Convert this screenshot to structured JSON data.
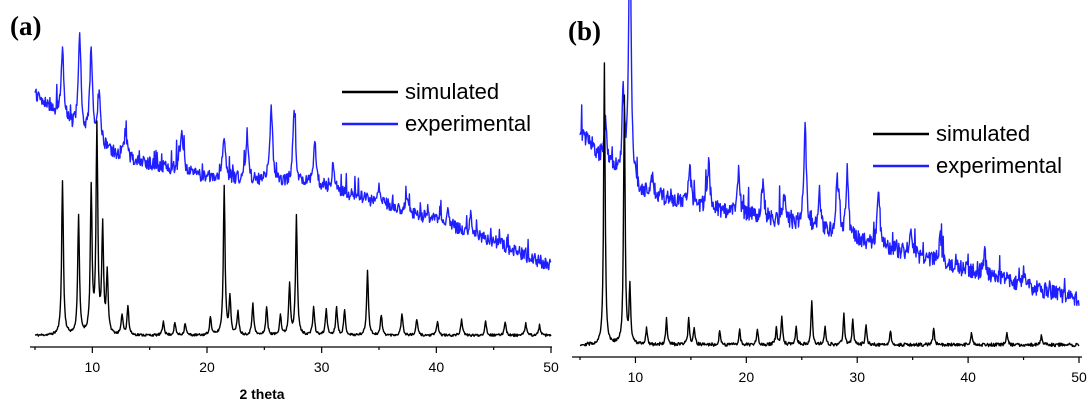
{
  "chart_data": [
    {
      "panel": "(a)",
      "type": "line",
      "xlabel": "2 theta",
      "ylabel": "",
      "xlim": [
        5,
        50
      ],
      "xticks": [
        10,
        20,
        30,
        40,
        50
      ],
      "y_axis_visible": false,
      "grid": false,
      "legend_position": "top-right",
      "series": [
        {
          "name": "simulated",
          "color": "#000000",
          "baseline": 4,
          "peaks": [
            [
              7.4,
              75
            ],
            [
              8.8,
              58
            ],
            [
              9.9,
              70
            ],
            [
              10.4,
              100
            ],
            [
              10.9,
              52
            ],
            [
              11.3,
              30
            ],
            [
              12.6,
              10
            ],
            [
              13.1,
              14
            ],
            [
              16.2,
              7
            ],
            [
              17.2,
              6
            ],
            [
              18.1,
              6
            ],
            [
              20.3,
              9
            ],
            [
              21.5,
              72
            ],
            [
              22.0,
              18
            ],
            [
              22.7,
              12
            ],
            [
              24.0,
              16
            ],
            [
              25.2,
              14
            ],
            [
              26.4,
              10
            ],
            [
              27.2,
              25
            ],
            [
              27.8,
              58
            ],
            [
              29.3,
              14
            ],
            [
              30.4,
              13
            ],
            [
              31.3,
              14
            ],
            [
              32.0,
              12
            ],
            [
              34.0,
              32
            ],
            [
              35.2,
              10
            ],
            [
              37.0,
              11
            ],
            [
              38.3,
              8
            ],
            [
              40.1,
              7
            ],
            [
              42.2,
              8
            ],
            [
              44.3,
              7
            ],
            [
              46.0,
              7
            ],
            [
              47.8,
              6
            ],
            [
              49.0,
              5
            ]
          ]
        },
        {
          "name": "experimental",
          "color": "#1e1eff",
          "background": [
            [
              5,
              82
            ],
            [
              8,
              72
            ],
            [
              12,
              62
            ],
            [
              20,
              55
            ],
            [
              30,
              52
            ],
            [
              40,
              41
            ],
            [
              50,
              26
            ]
          ],
          "peaks": [
            [
              7.4,
              22
            ],
            [
              8.9,
              30
            ],
            [
              9.9,
              28
            ],
            [
              10.6,
              17
            ],
            [
              12.9,
              9
            ],
            [
              17.8,
              14
            ],
            [
              21.5,
              14
            ],
            [
              23.5,
              12
            ],
            [
              25.6,
              25
            ],
            [
              27.6,
              23
            ],
            [
              29.4,
              14
            ],
            [
              31.0,
              8
            ],
            [
              35.0,
              6
            ],
            [
              37.5,
              5
            ],
            [
              41.0,
              4
            ],
            [
              43.0,
              5
            ],
            [
              45.5,
              3
            ]
          ]
        }
      ]
    },
    {
      "panel": "(b)",
      "type": "line",
      "xlabel": "",
      "ylabel": "",
      "xlim": [
        5,
        50
      ],
      "xticks": [
        10,
        20,
        30,
        40,
        50
      ],
      "y_axis_visible": false,
      "grid": false,
      "legend_position": "right",
      "series": [
        {
          "name": "simulated",
          "color": "#000000",
          "baseline": 3,
          "peaks": [
            [
              7.2,
              100
            ],
            [
              9.0,
              88
            ],
            [
              9.5,
              20
            ],
            [
              11.0,
              6
            ],
            [
              12.8,
              9
            ],
            [
              14.8,
              10
            ],
            [
              15.3,
              6
            ],
            [
              17.6,
              5
            ],
            [
              19.4,
              5
            ],
            [
              21.0,
              6
            ],
            [
              22.7,
              6
            ],
            [
              23.2,
              10
            ],
            [
              24.5,
              6
            ],
            [
              25.9,
              16
            ],
            [
              27.1,
              6
            ],
            [
              28.8,
              11
            ],
            [
              29.6,
              9
            ],
            [
              30.8,
              7
            ],
            [
              33.0,
              5
            ],
            [
              36.9,
              6
            ],
            [
              40.3,
              4
            ],
            [
              43.5,
              4
            ],
            [
              46.6,
              3
            ]
          ]
        },
        {
          "name": "experimental",
          "color": "#1e1eff",
          "background": [
            [
              5,
              45
            ],
            [
              7,
              39
            ],
            [
              10,
              33
            ],
            [
              15,
              30
            ],
            [
              25,
              26
            ],
            [
              35,
              20
            ],
            [
              45,
              14
            ],
            [
              50,
              11
            ]
          ],
          "peaks": [
            [
              7.3,
              8
            ],
            [
              8.9,
              16
            ],
            [
              9.5,
              55
            ],
            [
              11.5,
              3
            ],
            [
              14.9,
              8
            ],
            [
              16.6,
              9
            ],
            [
              19.3,
              8
            ],
            [
              21.5,
              7
            ],
            [
              23.4,
              6
            ],
            [
              25.3,
              20
            ],
            [
              26.6,
              7
            ],
            [
              28.2,
              11
            ],
            [
              29.1,
              13
            ],
            [
              31.9,
              11
            ],
            [
              34.8,
              5
            ],
            [
              37.5,
              5
            ],
            [
              41.5,
              4
            ],
            [
              45.0,
              3
            ]
          ]
        }
      ]
    }
  ]
}
